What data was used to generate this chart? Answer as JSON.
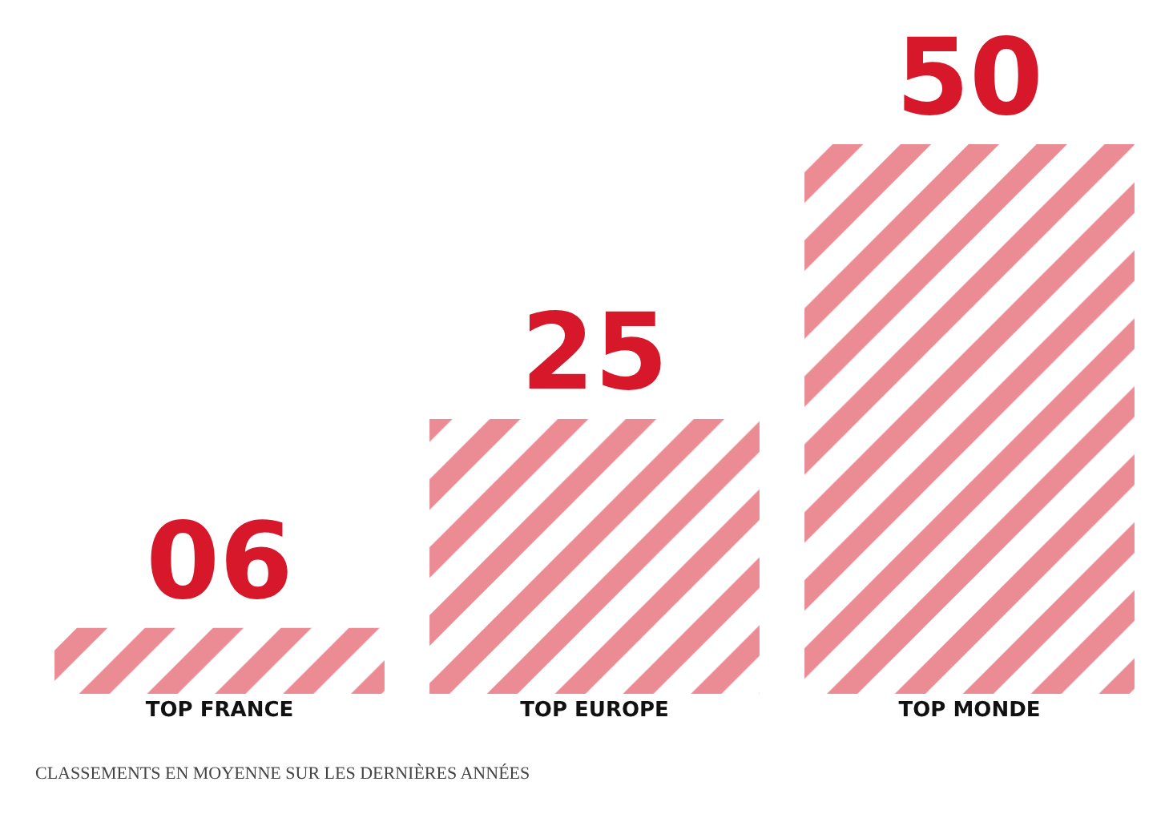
{
  "chart_data": {
    "type": "bar",
    "categories": [
      "TOP FRANCE",
      "TOP EUROPE",
      "TOP MONDE"
    ],
    "values": [
      6,
      25,
      50
    ],
    "value_labels": [
      "06",
      "25",
      "50"
    ],
    "color": "#d7182a",
    "ylim": [
      0,
      50
    ],
    "tick_labels": "x",
    "annotations": [
      "CLASSEMENTS EN MOYENNE SUR LES DERNIÈRES ANNÉES"
    ]
  }
}
